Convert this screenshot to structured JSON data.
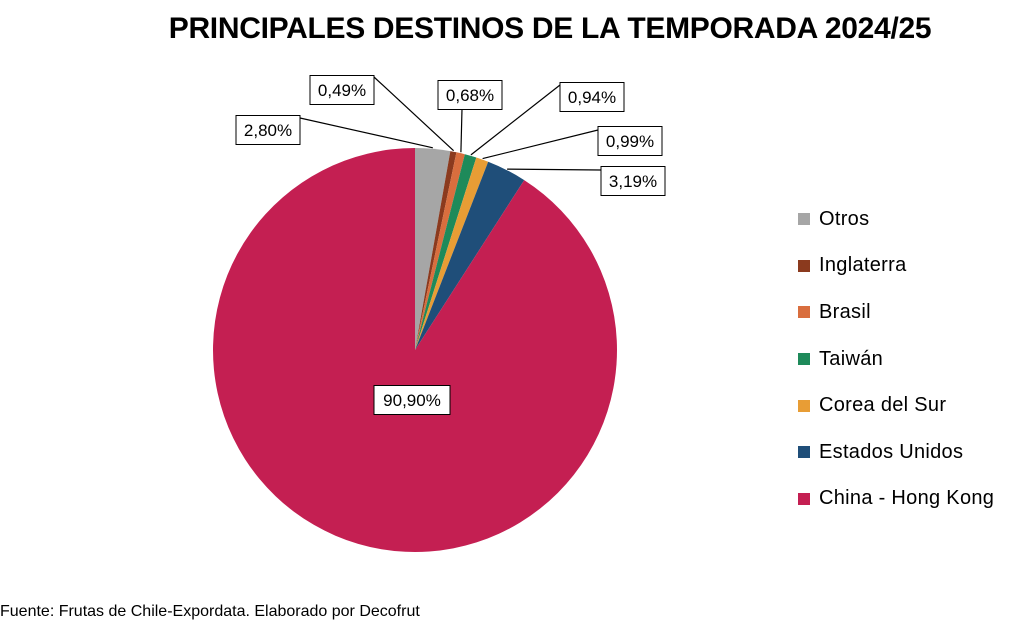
{
  "chart_data": {
    "type": "pie",
    "title": "PRINCIPALES DESTINOS DE LA TEMPORADA 2024/25",
    "categories": [
      "Otros",
      "Inglaterra",
      "Brasil",
      "Taiwán",
      "Corea del Sur",
      "Estados Unidos",
      "China - Hong Kong"
    ],
    "values": [
      2.8,
      0.49,
      0.68,
      0.94,
      0.99,
      3.19,
      90.9
    ],
    "labels": [
      "2,80%",
      "0,49%",
      "0,68%",
      "0,94%",
      "0,99%",
      "3,19%",
      "90,90%"
    ],
    "colors": [
      "#a6a6a6",
      "#8b3a1e",
      "#d96e3e",
      "#1e8a5a",
      "#e89d35",
      "#1f4e79",
      "#c41f52"
    ],
    "legend_position": "right"
  },
  "source": "Fuente: Frutas de Chile-Expordata. Elaborado por Decofrut"
}
